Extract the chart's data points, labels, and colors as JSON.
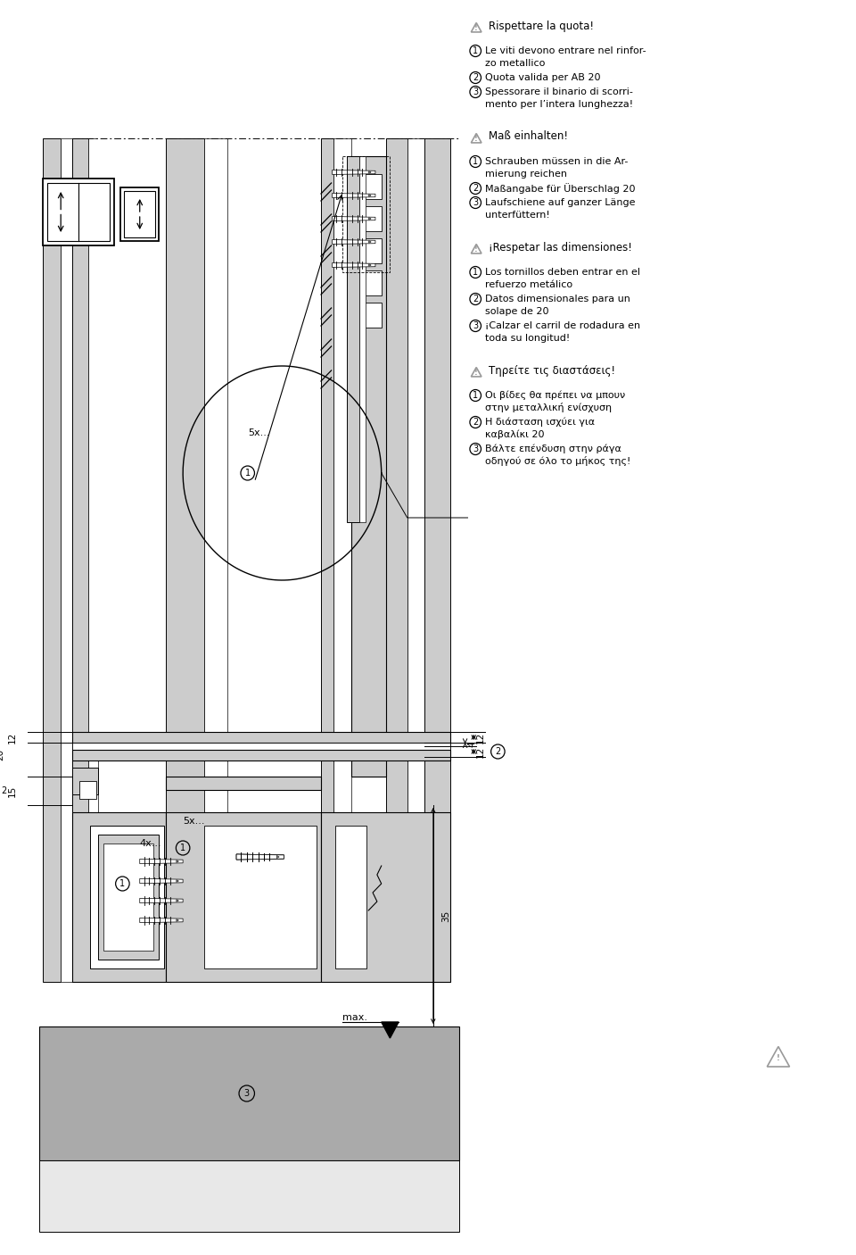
{
  "bg_color": "#ffffff",
  "lg": "#cccccc",
  "lm": "#aaaaaa",
  "lk": "#888888",
  "sections": [
    {
      "warning": "Rispettare la quota!",
      "items": [
        [
          "1",
          "Le viti devono entrare nel rinfor-",
          "zo metallico"
        ],
        [
          "2",
          "Quota valida per AB 20",
          ""
        ],
        [
          "3",
          "Spessorare il binario di scorri-",
          "mento per l’intera lunghezza!"
        ]
      ]
    },
    {
      "warning": "Maß einhalten!",
      "items": [
        [
          "1",
          "Schrauben müssen in die Ar-",
          "mierung reichen"
        ],
        [
          "2",
          "Maßangabe für Überschlag 20",
          ""
        ],
        [
          "3",
          "Laufschiene auf ganzer Länge",
          "unterfüttern!"
        ]
      ]
    },
    {
      "warning": "¡Respetar las dimensiones!",
      "items": [
        [
          "1",
          "Los tornillos deben entrar en el",
          "refuerzo metálico"
        ],
        [
          "2",
          "Datos dimensionales para un",
          "solape de 20"
        ],
        [
          "3",
          "¡Calzar el carril de rodadura en",
          "toda su longitud!"
        ]
      ]
    },
    {
      "warning": "Τηρείτε τις διαστάσεις!",
      "items": [
        [
          "1",
          "Οι βίδες θα πρέπει να μπουν",
          "στην μεταλλική ενίσχυση"
        ],
        [
          "2",
          "Η διάσταση ισχύει για",
          "καβαλίκι 20"
        ],
        [
          "3",
          "Βάλτε επένδυση στην ράγα",
          "οδηγού σε όλο το μήκος της!"
        ]
      ]
    }
  ]
}
